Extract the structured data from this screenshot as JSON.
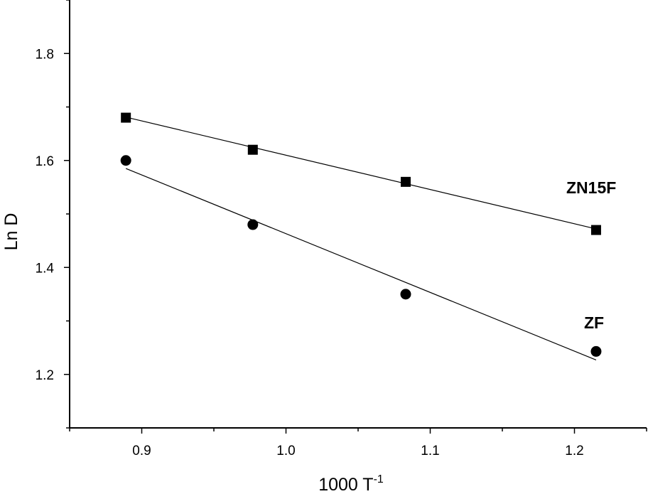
{
  "chart_data": {
    "type": "scatter",
    "title": "",
    "xlabel": "1000 T",
    "xlabel_sup": "-1",
    "ylabel": "Ln D",
    "xlim": [
      0.85,
      1.25
    ],
    "ylim": [
      1.1,
      1.9
    ],
    "x_ticks": [
      0.9,
      1.0,
      1.1,
      1.2
    ],
    "x_tick_labels": [
      "0.9",
      "1.0",
      "1.1",
      "1.2"
    ],
    "y_ticks": [
      1.2,
      1.4,
      1.6,
      1.8
    ],
    "y_tick_labels": [
      "1.2",
      "1.4",
      "1.6",
      "1.8"
    ],
    "grid": false,
    "legend": "none",
    "series": [
      {
        "name": "ZN15F",
        "marker": "square",
        "x": [
          0.889,
          0.977,
          1.083,
          1.215
        ],
        "y": [
          1.68,
          1.62,
          1.56,
          1.47
        ],
        "fit": [
          [
            0.889,
            1.681
          ],
          [
            1.215,
            1.472
          ]
        ]
      },
      {
        "name": "ZF",
        "marker": "circle",
        "x": [
          0.889,
          0.977,
          1.083,
          1.215
        ],
        "y": [
          1.6,
          1.48,
          1.35,
          1.243
        ],
        "fit": [
          [
            0.889,
            1.585
          ],
          [
            1.215,
            1.227
          ]
        ]
      }
    ]
  }
}
